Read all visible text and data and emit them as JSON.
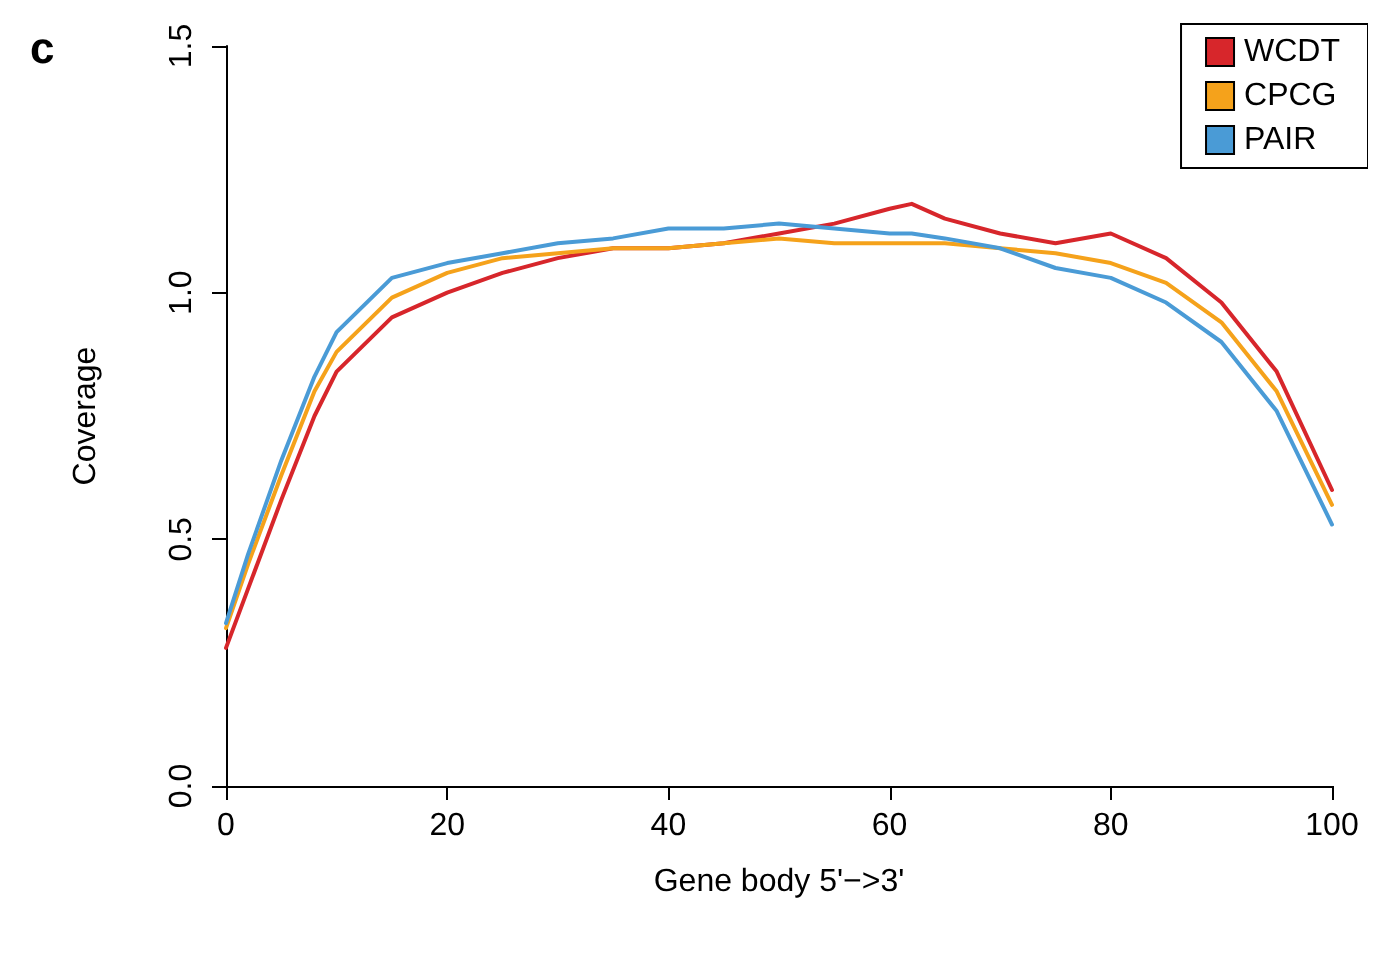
{
  "chart_data": {
    "type": "line",
    "xlabel": "Gene body 5'−>3'",
    "ylabel": "Coverage",
    "annotations": [
      "c"
    ],
    "x": [
      0,
      2,
      5,
      8,
      10,
      15,
      20,
      25,
      30,
      35,
      40,
      45,
      50,
      55,
      60,
      62,
      65,
      70,
      75,
      80,
      85,
      90,
      95,
      100
    ],
    "xlim": [
      0,
      100
    ],
    "xticks": [
      0,
      20,
      40,
      60,
      80,
      100
    ],
    "ylim": [
      0,
      1.5
    ],
    "yticks": [
      {
        "value": 0,
        "label": "0.0"
      },
      {
        "value": 0.5,
        "label": "0.5"
      },
      {
        "value": 1,
        "label": "1.0"
      },
      {
        "value": 1.5,
        "label": "1.5"
      }
    ],
    "grid": false,
    "legend": "top right",
    "marker": "none",
    "line_style": "solid",
    "series": [
      {
        "name": "WCDT",
        "color": "#d7262b",
        "values": [
          0.28,
          0.4,
          0.58,
          0.75,
          0.84,
          0.95,
          1.0,
          1.04,
          1.07,
          1.09,
          1.09,
          1.1,
          1.12,
          1.14,
          1.17,
          1.18,
          1.15,
          1.12,
          1.1,
          1.12,
          1.07,
          0.98,
          0.84,
          0.6
        ]
      },
      {
        "name": "CPCG",
        "color": "#f5a21b",
        "values": [
          0.32,
          0.45,
          0.63,
          0.8,
          0.88,
          0.99,
          1.04,
          1.07,
          1.08,
          1.09,
          1.09,
          1.1,
          1.11,
          1.1,
          1.1,
          1.1,
          1.1,
          1.09,
          1.08,
          1.06,
          1.02,
          0.94,
          0.8,
          0.57
        ]
      },
      {
        "name": "PAIR",
        "color": "#4a9bd6",
        "values": [
          0.33,
          0.47,
          0.66,
          0.83,
          0.92,
          1.03,
          1.06,
          1.08,
          1.1,
          1.11,
          1.13,
          1.13,
          1.14,
          1.13,
          1.12,
          1.12,
          1.11,
          1.09,
          1.05,
          1.03,
          0.98,
          0.9,
          0.76,
          0.53
        ]
      }
    ]
  }
}
